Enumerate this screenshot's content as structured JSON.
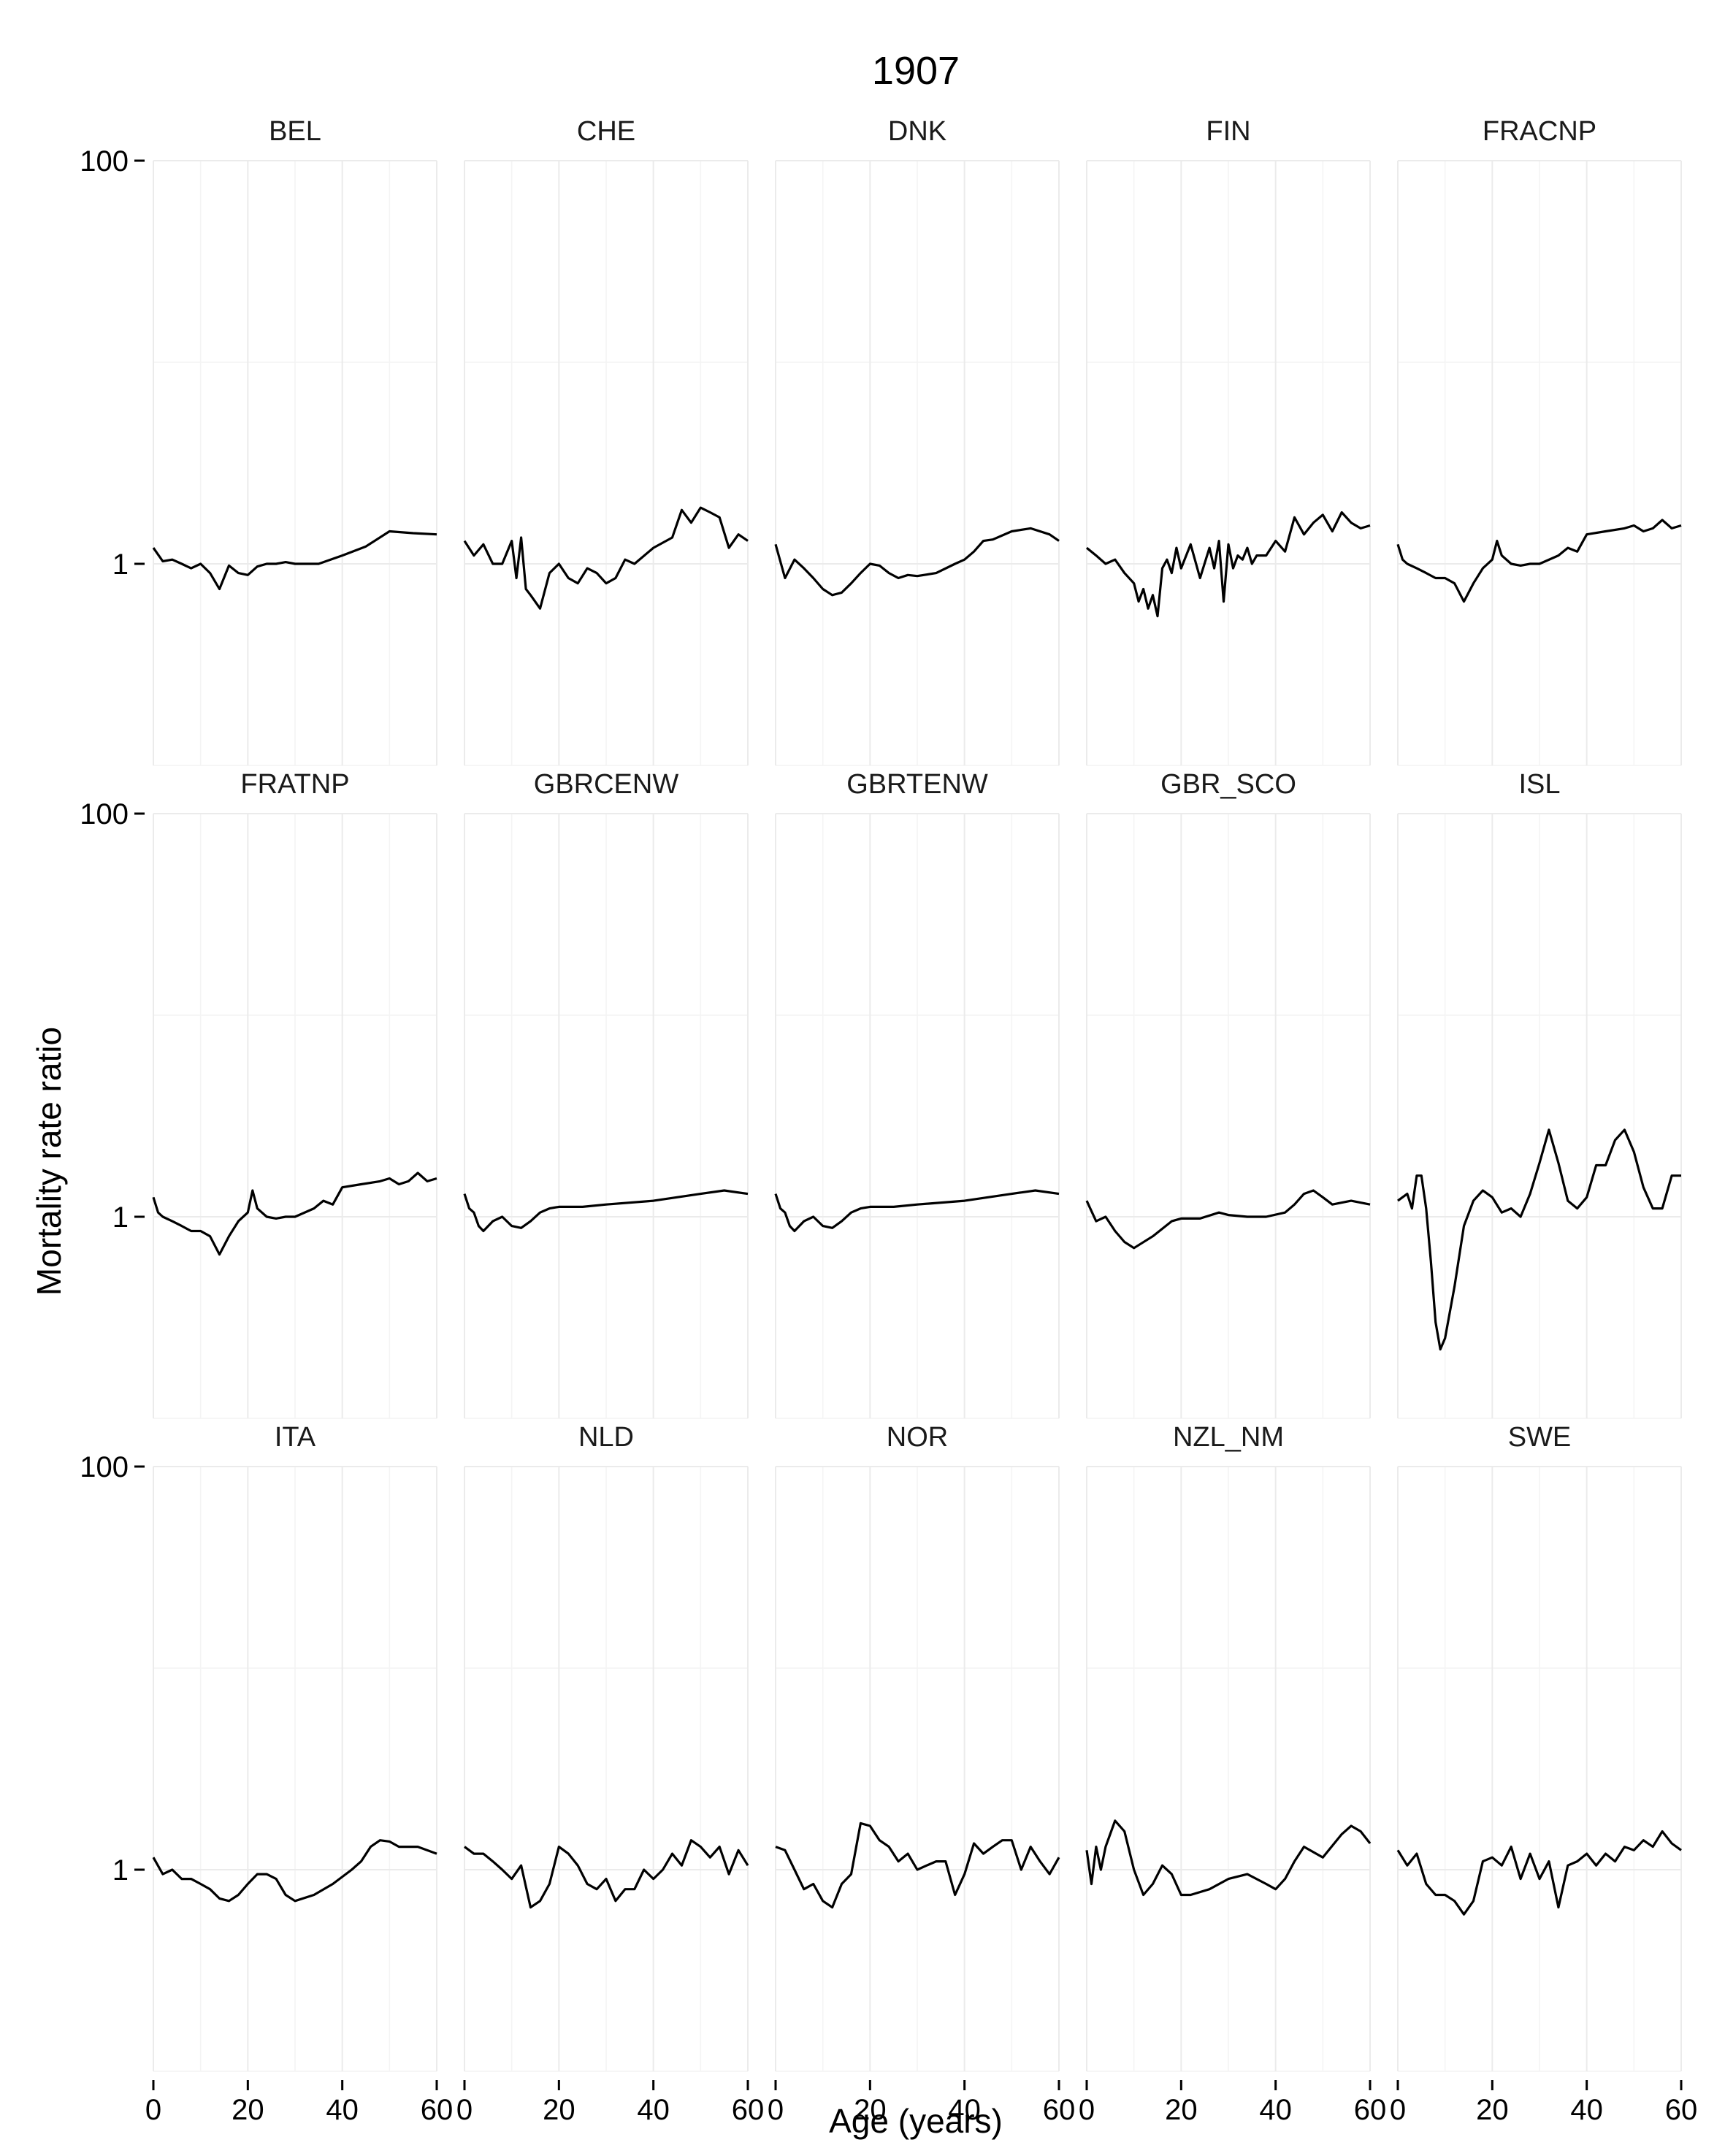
{
  "chart_data": {
    "type": "line",
    "title": "1907",
    "xlabel": "Age (years)",
    "ylabel": "Mortality rate ratio",
    "yscale": "log10",
    "xlim": [
      0,
      60
    ],
    "ylim": [
      0.1,
      100
    ],
    "x_ticks": [
      0,
      20,
      40,
      60
    ],
    "y_ticks": [
      1,
      100
    ],
    "y_tick_labels": [
      "1",
      "100"
    ],
    "x_tick_labels": [
      "0",
      "20",
      "40",
      "60"
    ],
    "grid": true,
    "layout": "facet_wrap 3 rows x 5 columns",
    "panels": [
      {
        "name": "BEL",
        "series": [
          {
            "x": [
              0,
              2,
              4,
              6,
              8,
              10,
              12,
              14,
              16,
              18,
              20,
              22,
              24,
              26,
              28,
              30,
              35,
              40,
              45,
              50,
              55,
              60
            ],
            "y": [
              1.2,
              1.03,
              1.05,
              1.0,
              0.95,
              1.0,
              0.9,
              0.75,
              0.98,
              0.9,
              0.88,
              0.97,
              1.0,
              1.0,
              1.02,
              1.0,
              1.0,
              1.1,
              1.22,
              1.45,
              1.42,
              1.4
            ]
          }
        ]
      },
      {
        "name": "CHE",
        "series": [
          {
            "x": [
              0,
              2,
              4,
              6,
              8,
              10,
              11,
              12,
              13,
              14,
              16,
              18,
              20,
              22,
              24,
              26,
              28,
              30,
              32,
              34,
              36,
              40,
              44,
              46,
              48,
              50,
              52,
              54,
              56,
              58,
              60
            ],
            "y": [
              1.3,
              1.1,
              1.25,
              1.0,
              1.0,
              1.3,
              0.85,
              1.35,
              0.75,
              0.7,
              0.6,
              0.9,
              1.0,
              0.85,
              0.8,
              0.95,
              0.9,
              0.8,
              0.85,
              1.05,
              1.0,
              1.2,
              1.35,
              1.85,
              1.6,
              1.9,
              1.8,
              1.7,
              1.2,
              1.4,
              1.3
            ]
          }
        ]
      },
      {
        "name": "DNK",
        "series": [
          {
            "x": [
              0,
              2,
              4,
              6,
              8,
              10,
              12,
              14,
              16,
              18,
              20,
              22,
              24,
              26,
              28,
              30,
              34,
              38,
              40,
              42,
              44,
              46,
              50,
              54,
              58,
              60
            ],
            "y": [
              1.25,
              0.85,
              1.05,
              0.95,
              0.85,
              0.75,
              0.7,
              0.72,
              0.8,
              0.9,
              1.0,
              0.98,
              0.9,
              0.85,
              0.88,
              0.87,
              0.9,
              1.0,
              1.05,
              1.15,
              1.3,
              1.32,
              1.45,
              1.5,
              1.4,
              1.3
            ]
          }
        ]
      },
      {
        "name": "FIN",
        "series": [
          {
            "x": [
              0,
              2,
              4,
              6,
              8,
              10,
              11,
              12,
              13,
              14,
              15,
              16,
              17,
              18,
              19,
              20,
              22,
              24,
              26,
              27,
              28,
              29,
              30,
              31,
              32,
              33,
              34,
              35,
              36,
              38,
              40,
              42,
              44,
              46,
              48,
              50,
              52,
              54,
              56,
              58,
              60
            ],
            "y": [
              1.2,
              1.1,
              1.0,
              1.05,
              0.9,
              0.8,
              0.65,
              0.75,
              0.6,
              0.7,
              0.55,
              0.95,
              1.05,
              0.9,
              1.2,
              0.95,
              1.25,
              0.85,
              1.2,
              0.95,
              1.3,
              0.65,
              1.25,
              0.95,
              1.1,
              1.05,
              1.2,
              1.0,
              1.1,
              1.1,
              1.3,
              1.15,
              1.7,
              1.4,
              1.6,
              1.75,
              1.45,
              1.8,
              1.6,
              1.5,
              1.55
            ]
          }
        ]
      },
      {
        "name": "FRACNP",
        "series": [
          {
            "x": [
              0,
              1,
              2,
              4,
              6,
              8,
              10,
              12,
              14,
              16,
              18,
              20,
              21,
              22,
              24,
              26,
              28,
              30,
              34,
              36,
              38,
              40,
              44,
              48,
              50,
              52,
              54,
              56,
              58,
              60
            ],
            "y": [
              1.25,
              1.05,
              1.0,
              0.95,
              0.9,
              0.85,
              0.85,
              0.8,
              0.65,
              0.8,
              0.95,
              1.05,
              1.3,
              1.1,
              1.0,
              0.98,
              1.0,
              1.0,
              1.1,
              1.2,
              1.15,
              1.4,
              1.45,
              1.5,
              1.55,
              1.45,
              1.5,
              1.65,
              1.5,
              1.55
            ]
          }
        ]
      },
      {
        "name": "FRATNP",
        "series": [
          {
            "x": [
              0,
              1,
              2,
              4,
              6,
              8,
              10,
              12,
              14,
              16,
              18,
              20,
              21,
              22,
              24,
              26,
              28,
              30,
              34,
              36,
              38,
              40,
              44,
              48,
              50,
              52,
              54,
              56,
              58,
              60
            ],
            "y": [
              1.25,
              1.05,
              1.0,
              0.95,
              0.9,
              0.85,
              0.85,
              0.8,
              0.65,
              0.8,
              0.95,
              1.05,
              1.35,
              1.1,
              1.0,
              0.98,
              1.0,
              1.0,
              1.1,
              1.2,
              1.15,
              1.4,
              1.45,
              1.5,
              1.55,
              1.45,
              1.5,
              1.65,
              1.5,
              1.55
            ]
          }
        ]
      },
      {
        "name": "GBRCENW",
        "series": [
          {
            "x": [
              0,
              1,
              2,
              3,
              4,
              6,
              8,
              10,
              12,
              14,
              16,
              18,
              20,
              25,
              30,
              40,
              50,
              55,
              60
            ],
            "y": [
              1.3,
              1.1,
              1.05,
              0.9,
              0.85,
              0.95,
              1.0,
              0.9,
              0.88,
              0.95,
              1.05,
              1.1,
              1.12,
              1.12,
              1.15,
              1.2,
              1.3,
              1.35,
              1.3
            ]
          }
        ]
      },
      {
        "name": "GBRTENW",
        "series": [
          {
            "x": [
              0,
              1,
              2,
              3,
              4,
              6,
              8,
              10,
              12,
              14,
              16,
              18,
              20,
              25,
              30,
              40,
              50,
              55,
              60
            ],
            "y": [
              1.3,
              1.1,
              1.05,
              0.9,
              0.85,
              0.95,
              1.0,
              0.9,
              0.88,
              0.95,
              1.05,
              1.1,
              1.12,
              1.12,
              1.15,
              1.2,
              1.3,
              1.35,
              1.3
            ]
          }
        ]
      },
      {
        "name": "GBR_SCO",
        "series": [
          {
            "x": [
              0,
              2,
              4,
              6,
              8,
              10,
              14,
              18,
              20,
              24,
              28,
              30,
              34,
              38,
              42,
              44,
              46,
              48,
              50,
              52,
              56,
              60
            ],
            "y": [
              1.2,
              0.95,
              1.0,
              0.85,
              0.75,
              0.7,
              0.8,
              0.95,
              0.98,
              0.98,
              1.05,
              1.02,
              1.0,
              1.0,
              1.05,
              1.15,
              1.3,
              1.35,
              1.25,
              1.15,
              1.2,
              1.15
            ]
          }
        ]
      },
      {
        "name": "ISL",
        "series": [
          {
            "x": [
              0,
              2,
              3,
              4,
              5,
              6,
              7,
              8,
              9,
              10,
              12,
              14,
              16,
              18,
              20,
              22,
              24,
              26,
              28,
              30,
              32,
              34,
              36,
              38,
              40,
              42,
              44,
              46,
              48,
              50,
              52,
              54,
              56,
              58,
              60
            ],
            "y": [
              1.2,
              1.3,
              1.1,
              1.6,
              1.6,
              1.1,
              0.6,
              0.3,
              0.22,
              0.25,
              0.45,
              0.9,
              1.2,
              1.35,
              1.25,
              1.05,
              1.1,
              1.0,
              1.3,
              1.85,
              2.7,
              1.85,
              1.2,
              1.1,
              1.25,
              1.8,
              1.8,
              2.4,
              2.7,
              2.1,
              1.4,
              1.1,
              1.1,
              1.6,
              1.6
            ]
          }
        ]
      },
      {
        "name": "ITA",
        "series": [
          {
            "x": [
              0,
              2,
              4,
              6,
              8,
              10,
              12,
              14,
              16,
              18,
              20,
              22,
              24,
              26,
              28,
              30,
              34,
              38,
              42,
              44,
              46,
              48,
              50,
              52,
              56,
              60
            ],
            "y": [
              1.15,
              0.95,
              1.0,
              0.9,
              0.9,
              0.85,
              0.8,
              0.72,
              0.7,
              0.75,
              0.85,
              0.95,
              0.95,
              0.9,
              0.75,
              0.7,
              0.75,
              0.85,
              1.0,
              1.1,
              1.3,
              1.4,
              1.38,
              1.3,
              1.3,
              1.2
            ]
          }
        ]
      },
      {
        "name": "NLD",
        "series": [
          {
            "x": [
              0,
              2,
              4,
              6,
              8,
              10,
              12,
              14,
              16,
              18,
              20,
              22,
              24,
              26,
              28,
              30,
              32,
              34,
              36,
              38,
              40,
              42,
              44,
              46,
              48,
              50,
              52,
              54,
              56,
              58,
              60
            ],
            "y": [
              1.3,
              1.2,
              1.2,
              1.1,
              1.0,
              0.9,
              1.05,
              0.65,
              0.7,
              0.85,
              1.3,
              1.2,
              1.05,
              0.85,
              0.8,
              0.9,
              0.7,
              0.8,
              0.8,
              1.0,
              0.9,
              1.0,
              1.2,
              1.05,
              1.4,
              1.3,
              1.15,
              1.3,
              0.95,
              1.25,
              1.05
            ]
          }
        ]
      },
      {
        "name": "NOR",
        "series": [
          {
            "x": [
              0,
              2,
              4,
              6,
              8,
              10,
              12,
              14,
              16,
              18,
              20,
              22,
              24,
              26,
              28,
              30,
              32,
              34,
              36,
              38,
              40,
              42,
              44,
              46,
              48,
              50,
              52,
              54,
              56,
              58,
              60
            ],
            "y": [
              1.3,
              1.25,
              1.0,
              0.8,
              0.85,
              0.7,
              0.65,
              0.85,
              0.95,
              1.7,
              1.65,
              1.4,
              1.3,
              1.1,
              1.2,
              1.0,
              1.05,
              1.1,
              1.1,
              0.75,
              0.95,
              1.35,
              1.2,
              1.3,
              1.4,
              1.4,
              1.0,
              1.3,
              1.1,
              0.95,
              1.15
            ]
          }
        ]
      },
      {
        "name": "NZL_NM",
        "series": [
          {
            "x": [
              0,
              1,
              2,
              3,
              4,
              6,
              8,
              10,
              12,
              14,
              16,
              18,
              20,
              22,
              26,
              30,
              34,
              38,
              40,
              42,
              44,
              46,
              50,
              54,
              56,
              58,
              60
            ],
            "y": [
              1.25,
              0.85,
              1.3,
              1.0,
              1.3,
              1.75,
              1.55,
              1.0,
              0.75,
              0.85,
              1.05,
              0.95,
              0.75,
              0.75,
              0.8,
              0.9,
              0.95,
              0.85,
              0.8,
              0.9,
              1.1,
              1.3,
              1.15,
              1.5,
              1.65,
              1.55,
              1.35
            ]
          }
        ]
      },
      {
        "name": "SWE",
        "series": [
          {
            "x": [
              0,
              2,
              4,
              6,
              8,
              10,
              12,
              14,
              16,
              18,
              20,
              22,
              24,
              26,
              28,
              30,
              32,
              34,
              36,
              38,
              40,
              42,
              44,
              46,
              48,
              50,
              52,
              54,
              56,
              58,
              60
            ],
            "y": [
              1.25,
              1.05,
              1.2,
              0.85,
              0.75,
              0.75,
              0.7,
              0.6,
              0.7,
              1.1,
              1.15,
              1.05,
              1.3,
              0.9,
              1.2,
              0.9,
              1.1,
              0.65,
              1.05,
              1.1,
              1.2,
              1.05,
              1.2,
              1.1,
              1.3,
              1.25,
              1.4,
              1.3,
              1.55,
              1.35,
              1.25
            ]
          }
        ]
      }
    ]
  }
}
